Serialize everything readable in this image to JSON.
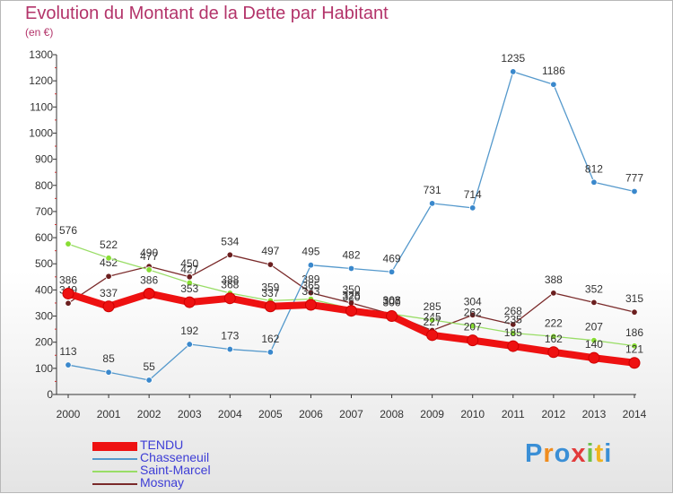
{
  "title": "Evolution du Montant de la Dette par Habitant",
  "unit": "(en €)",
  "logo": {
    "letters": [
      "P",
      "r",
      "o",
      "x",
      "i",
      "t",
      "i"
    ],
    "colors": [
      "#3a8fd6",
      "#f08c1e",
      "#3a8fd6",
      "#e23b3b",
      "#6cc04a",
      "#f0b41e",
      "#3a8fd6"
    ]
  },
  "chart_data": {
    "type": "line",
    "x": [
      2000,
      2001,
      2002,
      2003,
      2004,
      2005,
      2006,
      2007,
      2008,
      2009,
      2010,
      2011,
      2012,
      2013,
      2014
    ],
    "ylim": [
      0,
      1300
    ],
    "yticks": [
      0,
      100,
      200,
      300,
      400,
      500,
      600,
      700,
      800,
      900,
      1000,
      1100,
      1200,
      1300
    ],
    "grid": "none",
    "legend_position": "bottom-left",
    "series": [
      {
        "name": "Mosnay",
        "color": "#7a2a2a",
        "marker": "#6b1f1f",
        "width": 1.3,
        "values": [
          349,
          452,
          490,
          450,
          534,
          497,
          389,
          350,
          307,
          245,
          304,
          268,
          388,
          352,
          315
        ]
      },
      {
        "name": "Saint-Marcel",
        "color": "#99dd66",
        "marker": "#88dd33",
        "width": 1.3,
        "values": [
          576,
          522,
          477,
          427,
          388,
          359,
          365,
          328,
          308,
          285,
          262,
          235,
          222,
          207,
          186
        ]
      },
      {
        "name": "Chasseneuil",
        "color": "#5599cc",
        "marker": "#3a88cc",
        "width": 1.3,
        "values": [
          113,
          85,
          55,
          192,
          173,
          162,
          495,
          482,
          469,
          731,
          714,
          1235,
          1186,
          812,
          777
        ]
      },
      {
        "name": "TENDU",
        "color": "#ee1111",
        "marker": "#ee1111",
        "width": 8,
        "values": [
          386,
          337,
          386,
          353,
          368,
          337,
          343,
          320,
          300,
          227,
          207,
          185,
          162,
          140,
          121
        ]
      }
    ]
  }
}
